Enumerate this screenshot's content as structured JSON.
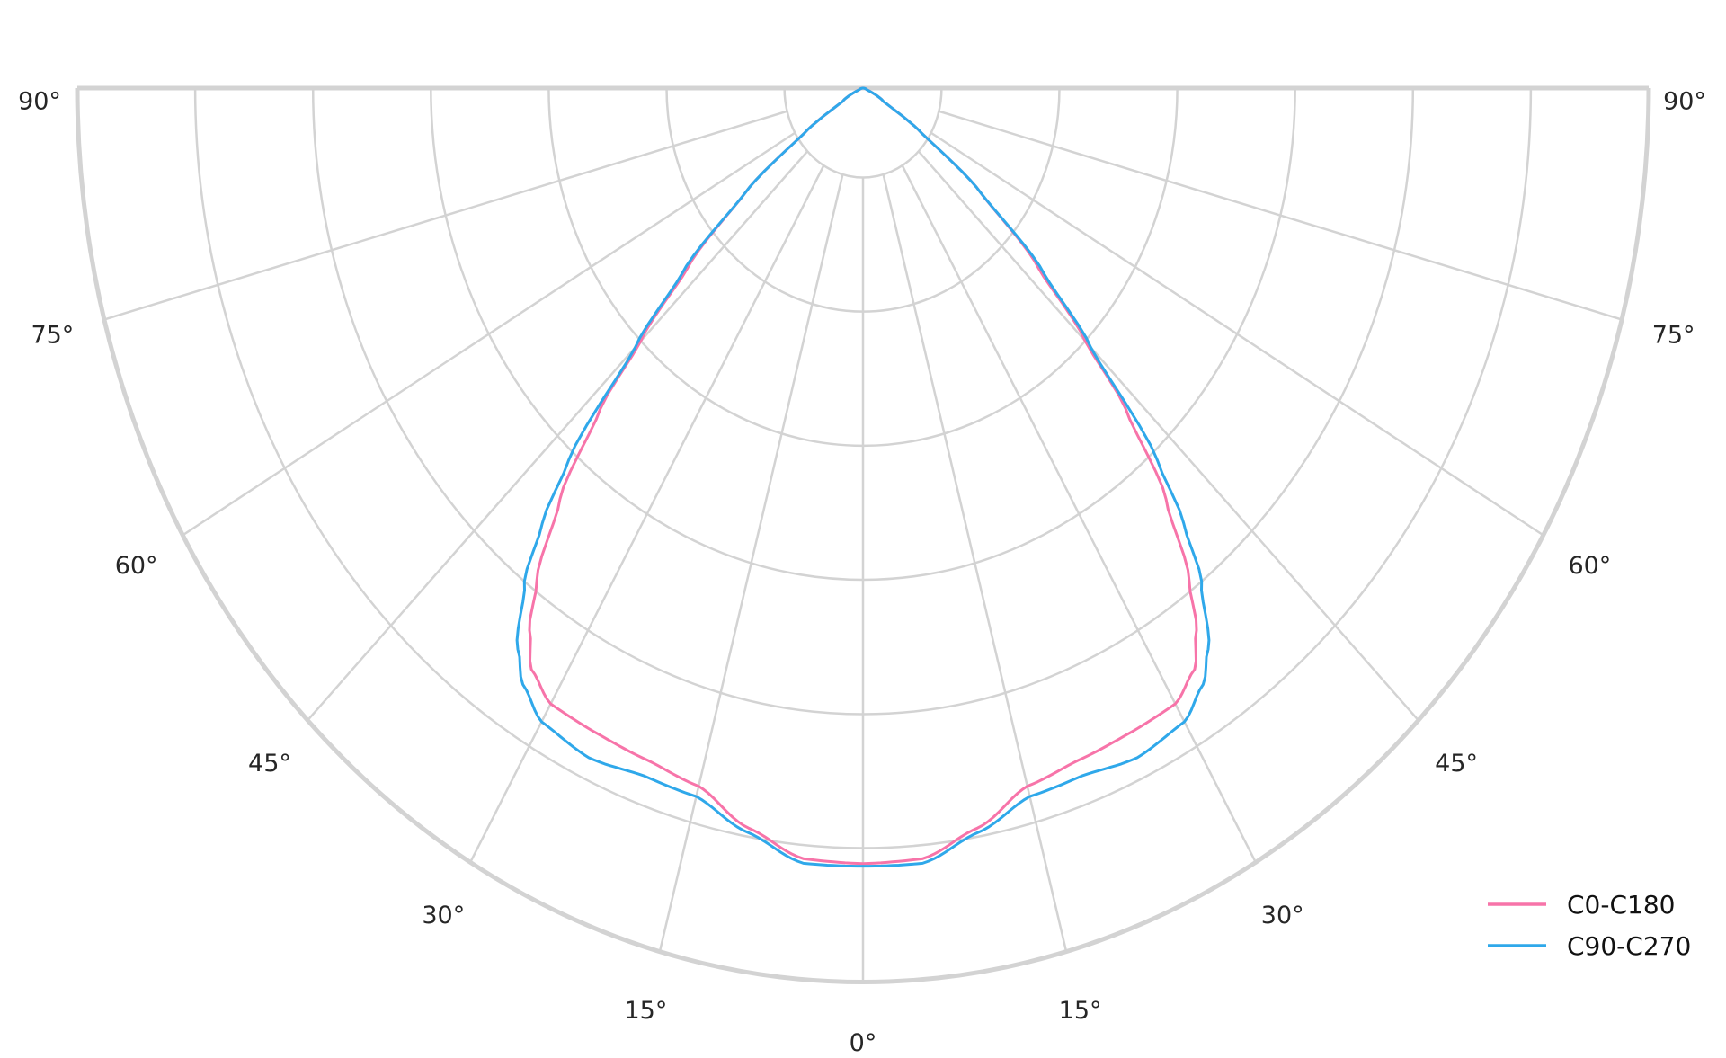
{
  "chart_data": {
    "type": "polar",
    "title": "",
    "angle_unit": "degrees",
    "angle_zero": "bottom",
    "angle_range": [
      -90,
      90
    ],
    "angle_ticks": [
      0,
      15,
      30,
      45,
      60,
      75,
      90
    ],
    "angle_tick_labels": [
      "0°",
      "15°",
      "30°",
      "45°",
      "60°",
      "75°",
      "90°"
    ],
    "radial_grid": [
      0.1,
      0.25,
      0.4,
      0.55,
      0.7,
      0.85,
      1.0
    ],
    "radial_tick_labels_shown": false,
    "grid": true,
    "grid_color": "#d3d3d3",
    "legend_position": "bottom-right",
    "series": [
      {
        "name": "C0-C180",
        "color": "#f774a9",
        "angles": [
          0,
          5,
          10,
          15,
          20,
          25,
          30,
          33,
          35,
          37,
          40,
          43,
          45,
          48,
          52,
          56,
          60,
          70,
          90
        ],
        "values": [
          0.867,
          0.865,
          0.84,
          0.808,
          0.8,
          0.797,
          0.795,
          0.775,
          0.74,
          0.69,
          0.6,
          0.49,
          0.4,
          0.3,
          0.19,
          0.09,
          0.03,
          0.005,
          0
        ]
      },
      {
        "name": "C90-C270",
        "color": "#2fa8ea",
        "angles": [
          0,
          5,
          10,
          15,
          20,
          25,
          30,
          33,
          35,
          38,
          40,
          42,
          45,
          48,
          52,
          56,
          60,
          70,
          90
        ],
        "values": [
          0.87,
          0.87,
          0.845,
          0.82,
          0.818,
          0.826,
          0.818,
          0.795,
          0.766,
          0.7,
          0.635,
          0.56,
          0.41,
          0.31,
          0.19,
          0.09,
          0.03,
          0.005,
          0
        ]
      }
    ]
  }
}
